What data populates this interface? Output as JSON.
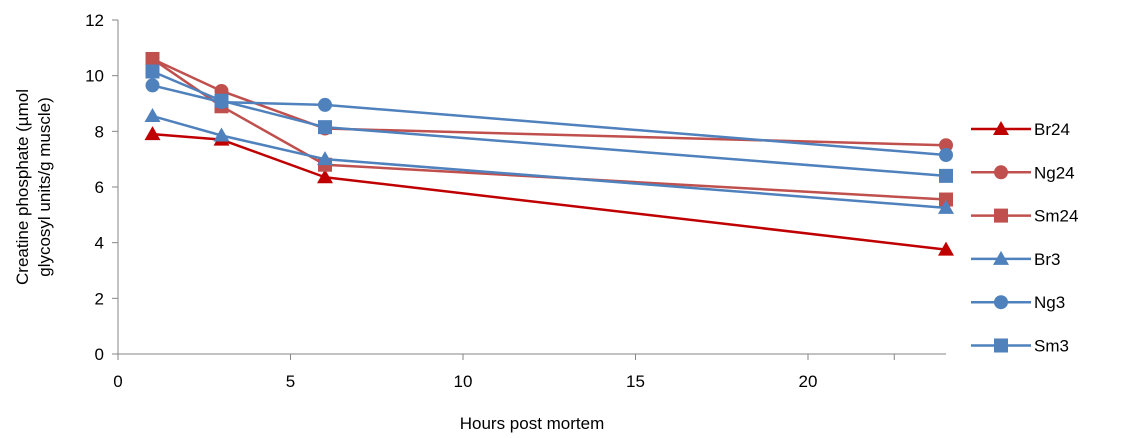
{
  "chart_data": {
    "type": "line",
    "title": "",
    "xlabel": "Hours post mortem",
    "ylabel": [
      "Creatine phosphate  (µmol",
      "glycosyl units/g muscle)"
    ],
    "xlim": [
      0,
      24
    ],
    "ylim": [
      0,
      12
    ],
    "xticks": [
      "0",
      "5",
      "10",
      "15",
      "20"
    ],
    "yticks": [
      "0",
      "2",
      "4",
      "6",
      "8",
      "10",
      "12"
    ],
    "grid": false,
    "legend_position": "right",
    "x": [
      1,
      3,
      6,
      24
    ],
    "series": [
      {
        "name": "Br24",
        "color": "#C00000",
        "marker": "triangle",
        "values": [
          7.9,
          7.7,
          6.35,
          3.75
        ]
      },
      {
        "name": "Ng24",
        "color": "#C0504D",
        "marker": "circle",
        "values": [
          10.6,
          9.45,
          8.1,
          7.5
        ]
      },
      {
        "name": "Sm24",
        "color": "#C0504D",
        "marker": "square",
        "values": [
          10.6,
          8.9,
          6.8,
          5.55
        ]
      },
      {
        "name": "Br3",
        "color": "#4F81BD",
        "marker": "triangle",
        "values": [
          8.55,
          7.85,
          7.0,
          5.25
        ]
      },
      {
        "name": "Ng3",
        "color": "#4F81BD",
        "marker": "circle",
        "values": [
          9.65,
          9.05,
          8.95,
          7.15
        ]
      },
      {
        "name": "Sm3",
        "color": "#4F81BD",
        "marker": "square",
        "values": [
          10.15,
          9.1,
          8.15,
          6.4
        ]
      }
    ]
  }
}
